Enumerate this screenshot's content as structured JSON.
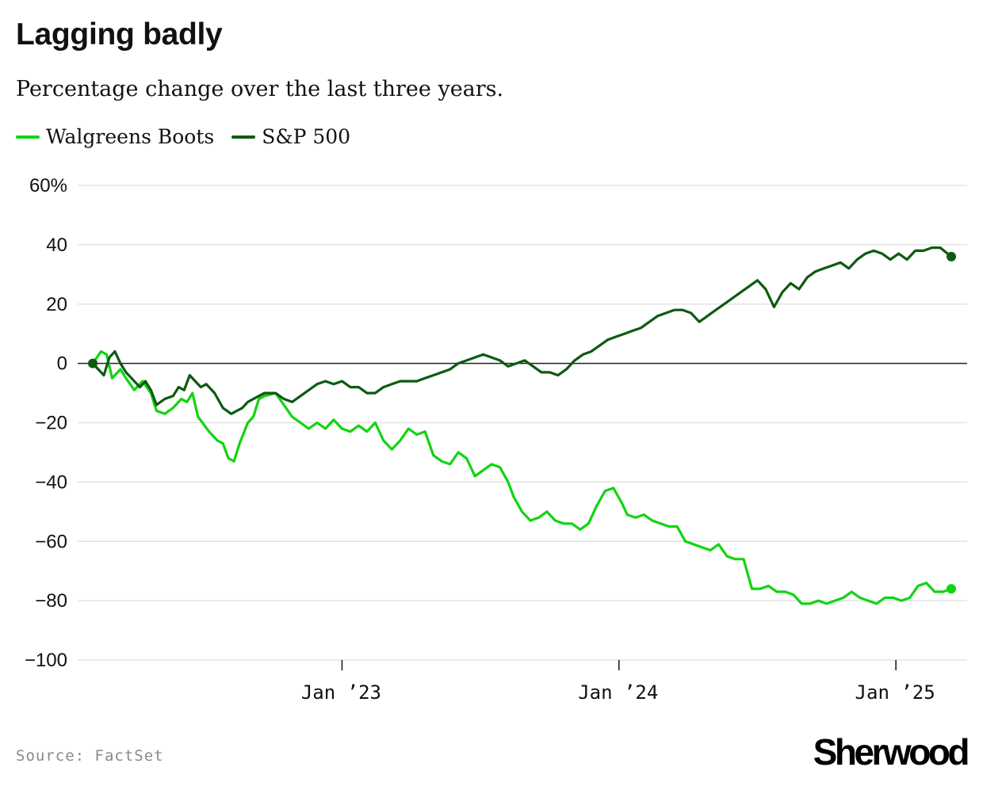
{
  "header": {
    "title": "Lagging badly",
    "subtitle": "Percentage change over the last three years."
  },
  "footer": {
    "source": "Source: FactSet",
    "logo": "Sherwood"
  },
  "colors": {
    "walgreens": "#11d411",
    "sp500": "#0d5a12",
    "gridline": "#e3e3e3",
    "zeroline": "#222222"
  },
  "chart_data": {
    "type": "line",
    "title": "Lagging badly",
    "subtitle": "Percentage change over the last three years.",
    "xlabel": "",
    "ylabel": "",
    "ylim": [
      -100,
      60
    ],
    "yticks": [
      60,
      40,
      20,
      0,
      -20,
      -40,
      -60,
      -80,
      -100
    ],
    "ytick_labels": [
      "60%",
      "40",
      "20",
      "0",
      "−20",
      "−40",
      "−60",
      "−80",
      "−100"
    ],
    "xlim": [
      2022.1,
      2025.2
    ],
    "xticks": [
      {
        "x": 2023.0,
        "label": "Jan ’23"
      },
      {
        "x": 2024.0,
        "label": "Jan ’24"
      },
      {
        "x": 2025.0,
        "label": "Jan ’25"
      }
    ],
    "grid": true,
    "legend_position": "top-left",
    "series": [
      {
        "name": "Walgreens Boots",
        "color": "#11d411",
        "points": [
          [
            2022.1,
            0
          ],
          [
            2022.13,
            4
          ],
          [
            2022.15,
            3
          ],
          [
            2022.17,
            -5
          ],
          [
            2022.2,
            -2
          ],
          [
            2022.22,
            -5
          ],
          [
            2022.25,
            -9
          ],
          [
            2022.28,
            -6
          ],
          [
            2022.31,
            -10
          ],
          [
            2022.33,
            -16
          ],
          [
            2022.36,
            -17
          ],
          [
            2022.39,
            -15
          ],
          [
            2022.42,
            -12
          ],
          [
            2022.44,
            -13
          ],
          [
            2022.46,
            -10
          ],
          [
            2022.48,
            -18
          ],
          [
            2022.52,
            -23
          ],
          [
            2022.55,
            -26
          ],
          [
            2022.57,
            -27
          ],
          [
            2022.59,
            -32
          ],
          [
            2022.61,
            -33
          ],
          [
            2022.63,
            -27
          ],
          [
            2022.66,
            -20
          ],
          [
            2022.68,
            -18
          ],
          [
            2022.7,
            -12
          ],
          [
            2022.72,
            -11
          ],
          [
            2022.76,
            -10
          ],
          [
            2022.79,
            -14
          ],
          [
            2022.82,
            -18
          ],
          [
            2022.85,
            -20
          ],
          [
            2022.88,
            -22
          ],
          [
            2022.91,
            -20
          ],
          [
            2022.94,
            -22
          ],
          [
            2022.97,
            -19
          ],
          [
            2023.0,
            -22
          ],
          [
            2023.03,
            -23
          ],
          [
            2023.06,
            -21
          ],
          [
            2023.09,
            -23
          ],
          [
            2023.12,
            -20
          ],
          [
            2023.15,
            -26
          ],
          [
            2023.18,
            -29
          ],
          [
            2023.21,
            -26
          ],
          [
            2023.24,
            -22
          ],
          [
            2023.27,
            -24
          ],
          [
            2023.3,
            -23
          ],
          [
            2023.33,
            -31
          ],
          [
            2023.36,
            -33
          ],
          [
            2023.39,
            -34
          ],
          [
            2023.42,
            -30
          ],
          [
            2023.45,
            -32
          ],
          [
            2023.48,
            -38
          ],
          [
            2023.51,
            -36
          ],
          [
            2023.54,
            -34
          ],
          [
            2023.57,
            -35
          ],
          [
            2023.6,
            -40
          ],
          [
            2023.62,
            -45
          ],
          [
            2023.65,
            -50
          ],
          [
            2023.68,
            -53
          ],
          [
            2023.71,
            -52
          ],
          [
            2023.74,
            -50
          ],
          [
            2023.77,
            -53
          ],
          [
            2023.8,
            -54
          ],
          [
            2023.83,
            -54
          ],
          [
            2023.86,
            -56
          ],
          [
            2023.89,
            -54
          ],
          [
            2023.92,
            -48
          ],
          [
            2023.95,
            -43
          ],
          [
            2023.98,
            -42
          ],
          [
            2024.01,
            -47
          ],
          [
            2024.03,
            -51
          ],
          [
            2024.06,
            -52
          ],
          [
            2024.09,
            -51
          ],
          [
            2024.12,
            -53
          ],
          [
            2024.15,
            -54
          ],
          [
            2024.18,
            -55
          ],
          [
            2024.21,
            -55
          ],
          [
            2024.24,
            -60
          ],
          [
            2024.27,
            -61
          ],
          [
            2024.3,
            -62
          ],
          [
            2024.33,
            -63
          ],
          [
            2024.36,
            -61
          ],
          [
            2024.39,
            -65
          ],
          [
            2024.42,
            -66
          ],
          [
            2024.45,
            -66
          ],
          [
            2024.48,
            -76
          ],
          [
            2024.51,
            -76
          ],
          [
            2024.54,
            -75
          ],
          [
            2024.57,
            -77
          ],
          [
            2024.6,
            -77
          ],
          [
            2024.63,
            -78
          ],
          [
            2024.66,
            -81
          ],
          [
            2024.69,
            -81
          ],
          [
            2024.72,
            -80
          ],
          [
            2024.75,
            -81
          ],
          [
            2024.78,
            -80
          ],
          [
            2024.81,
            -79
          ],
          [
            2024.84,
            -77
          ],
          [
            2024.87,
            -79
          ],
          [
            2024.9,
            -80
          ],
          [
            2024.93,
            -81
          ],
          [
            2024.96,
            -79
          ],
          [
            2024.99,
            -79
          ],
          [
            2025.02,
            -80
          ],
          [
            2025.05,
            -79
          ],
          [
            2025.08,
            -75
          ],
          [
            2025.11,
            -74
          ],
          [
            2025.14,
            -77
          ],
          [
            2025.17,
            -77
          ],
          [
            2025.2,
            -76
          ]
        ]
      },
      {
        "name": "S&P 500",
        "color": "#0d5a12",
        "points": [
          [
            2022.1,
            0
          ],
          [
            2022.12,
            -2
          ],
          [
            2022.14,
            -4
          ],
          [
            2022.16,
            2
          ],
          [
            2022.18,
            4
          ],
          [
            2022.2,
            0
          ],
          [
            2022.22,
            -3
          ],
          [
            2022.24,
            -5
          ],
          [
            2022.27,
            -8
          ],
          [
            2022.29,
            -6
          ],
          [
            2022.31,
            -9
          ],
          [
            2022.33,
            -14
          ],
          [
            2022.36,
            -12
          ],
          [
            2022.39,
            -11
          ],
          [
            2022.41,
            -8
          ],
          [
            2022.43,
            -9
          ],
          [
            2022.45,
            -4
          ],
          [
            2022.47,
            -6
          ],
          [
            2022.49,
            -8
          ],
          [
            2022.51,
            -7
          ],
          [
            2022.54,
            -10
          ],
          [
            2022.57,
            -15
          ],
          [
            2022.6,
            -17
          ],
          [
            2022.62,
            -16
          ],
          [
            2022.64,
            -15
          ],
          [
            2022.66,
            -13
          ],
          [
            2022.68,
            -12
          ],
          [
            2022.72,
            -10
          ],
          [
            2022.76,
            -10
          ],
          [
            2022.79,
            -12
          ],
          [
            2022.82,
            -13
          ],
          [
            2022.85,
            -11
          ],
          [
            2022.88,
            -9
          ],
          [
            2022.91,
            -7
          ],
          [
            2022.94,
            -6
          ],
          [
            2022.97,
            -7
          ],
          [
            2023.0,
            -6
          ],
          [
            2023.03,
            -8
          ],
          [
            2023.06,
            -8
          ],
          [
            2023.09,
            -10
          ],
          [
            2023.12,
            -10
          ],
          [
            2023.15,
            -8
          ],
          [
            2023.18,
            -7
          ],
          [
            2023.21,
            -6
          ],
          [
            2023.24,
            -6
          ],
          [
            2023.27,
            -6
          ],
          [
            2023.3,
            -5
          ],
          [
            2023.33,
            -4
          ],
          [
            2023.36,
            -3
          ],
          [
            2023.39,
            -2
          ],
          [
            2023.42,
            0
          ],
          [
            2023.45,
            1
          ],
          [
            2023.48,
            2
          ],
          [
            2023.51,
            3
          ],
          [
            2023.54,
            2
          ],
          [
            2023.57,
            1
          ],
          [
            2023.6,
            -1
          ],
          [
            2023.63,
            0
          ],
          [
            2023.66,
            1
          ],
          [
            2023.69,
            -1
          ],
          [
            2023.72,
            -3
          ],
          [
            2023.75,
            -3
          ],
          [
            2023.78,
            -4
          ],
          [
            2023.81,
            -2
          ],
          [
            2023.84,
            1
          ],
          [
            2023.87,
            3
          ],
          [
            2023.9,
            4
          ],
          [
            2023.93,
            6
          ],
          [
            2023.96,
            8
          ],
          [
            2023.99,
            9
          ],
          [
            2024.02,
            10
          ],
          [
            2024.05,
            11
          ],
          [
            2024.08,
            12
          ],
          [
            2024.11,
            14
          ],
          [
            2024.14,
            16
          ],
          [
            2024.17,
            17
          ],
          [
            2024.2,
            18
          ],
          [
            2024.23,
            18
          ],
          [
            2024.26,
            17
          ],
          [
            2024.29,
            14
          ],
          [
            2024.32,
            16
          ],
          [
            2024.35,
            18
          ],
          [
            2024.38,
            20
          ],
          [
            2024.41,
            22
          ],
          [
            2024.44,
            24
          ],
          [
            2024.47,
            26
          ],
          [
            2024.5,
            28
          ],
          [
            2024.53,
            25
          ],
          [
            2024.56,
            19
          ],
          [
            2024.59,
            24
          ],
          [
            2024.62,
            27
          ],
          [
            2024.65,
            25
          ],
          [
            2024.68,
            29
          ],
          [
            2024.71,
            31
          ],
          [
            2024.74,
            32
          ],
          [
            2024.77,
            33
          ],
          [
            2024.8,
            34
          ],
          [
            2024.83,
            32
          ],
          [
            2024.86,
            35
          ],
          [
            2024.89,
            37
          ],
          [
            2024.92,
            38
          ],
          [
            2024.95,
            37
          ],
          [
            2024.98,
            35
          ],
          [
            2025.01,
            37
          ],
          [
            2025.04,
            35
          ],
          [
            2025.07,
            38
          ],
          [
            2025.1,
            38
          ],
          [
            2025.13,
            39
          ],
          [
            2025.16,
            39
          ],
          [
            2025.2,
            36
          ]
        ]
      }
    ]
  }
}
